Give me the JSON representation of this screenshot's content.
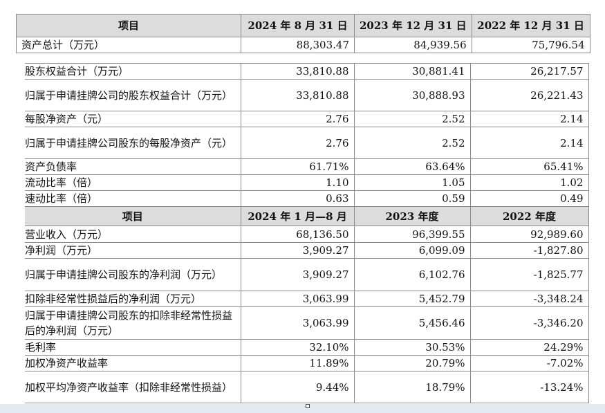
{
  "header1": [
    "项目",
    "2024 年 8 月 31 日",
    "2023 年 12 月 31 日",
    "2022 年 12 月 31 日"
  ],
  "row_top": [
    "资产总计（万元）",
    "88,303.47",
    "84,939.56",
    "75,796.54"
  ],
  "rows_a": [
    [
      "股东权益合计（万元）",
      "33,810.88",
      "30,881.41",
      "26,217.57"
    ],
    [
      "归属于申请挂牌公司的股东权益合计（万元）",
      "33,810.88",
      "30,888.93",
      "26,221.43"
    ],
    [
      "每股净资产（元）",
      "2.76",
      "2.52",
      "2.14"
    ],
    [
      "归属于申请挂牌公司股东的每股净资产（元）",
      "2.76",
      "2.52",
      "2.14"
    ],
    [
      "资产负债率",
      "61.71%",
      "63.64%",
      "65.41%"
    ],
    [
      "流动比率（倍）",
      "1.10",
      "1.05",
      "1.02"
    ],
    [
      "速动比率（倍）",
      "0.63",
      "0.59",
      "0.49"
    ]
  ],
  "header2": [
    "项目",
    "2024 年 1 月—8 月",
    "2023 年度",
    "2022 年度"
  ],
  "rows_b": [
    [
      "营业收入（万元）",
      "68,136.50",
      "96,399.55",
      "92,989.60"
    ],
    [
      "净利润（万元）",
      "3,909.27",
      "6,099.09",
      "-1,827.80"
    ],
    [
      "归属于申请挂牌公司股东的净利润（万元）",
      "3,909.27",
      "6,102.76",
      "-1,825.77"
    ],
    [
      "扣除非经常性损益后的净利润（万元）",
      "3,063.99",
      "5,452.79",
      "-3,348.24"
    ],
    [
      "归属于申请挂牌公司股东的扣除非经常性损益后的净利润（万元）",
      "3,063.99",
      "5,456.46",
      "-3,346.20"
    ],
    [
      "毛利率",
      "32.10%",
      "30.53%",
      "24.29%"
    ],
    [
      "加权净资产收益率",
      "11.89%",
      "20.79%",
      "-7.02%"
    ],
    [
      "加权平均净资产收益率（扣除非经常性损益）",
      "9.44%",
      "18.79%",
      "-13.24%"
    ]
  ]
}
